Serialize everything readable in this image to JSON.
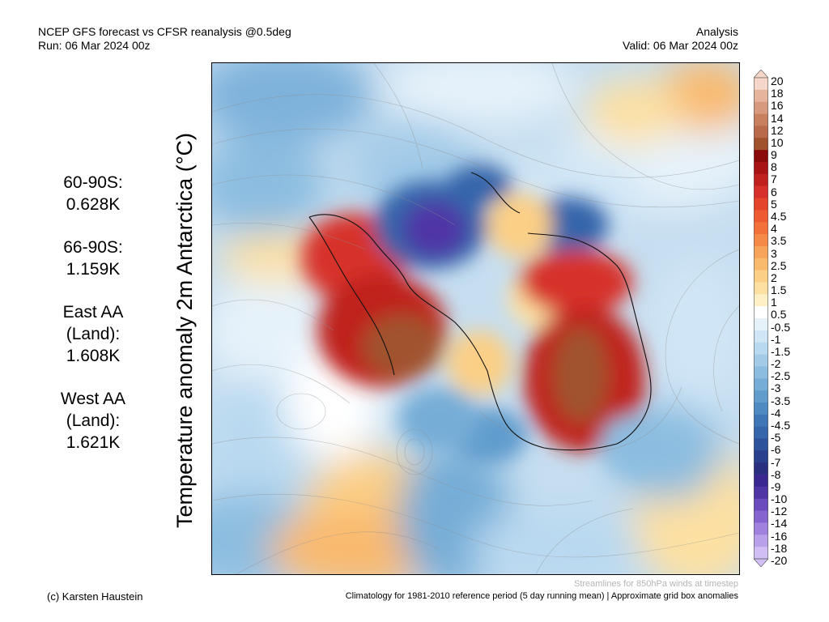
{
  "header": {
    "title": "NCEP GFS forecast vs CFSR reanalysis @0.5deg",
    "run": "Run: 06 Mar 2024 00z",
    "mode": "Analysis",
    "valid": "Valid: 06 Mar 2024 00z"
  },
  "map_title": "Temperature anomaly 2m Antarctica (°C)",
  "stats": [
    {
      "label": "60-90S:",
      "value": "0.628K"
    },
    {
      "label": "66-90S:",
      "value": "1.159K"
    },
    {
      "label": "East AA (Land):",
      "value": "1.608K"
    },
    {
      "label": "West AA (Land):",
      "value": "1.621K"
    }
  ],
  "colorbar": {
    "labels": [
      "20",
      "18",
      "16",
      "14",
      "12",
      "10",
      "9",
      "8",
      "7",
      "6",
      "5",
      "4.5",
      "4",
      "3.5",
      "3",
      "2.5",
      "2",
      "1.5",
      "1",
      "0.5",
      "-0.5",
      "-1",
      "-1.5",
      "-2",
      "-2.5",
      "-3",
      "-3.5",
      "-4",
      "-4.5",
      "-5",
      "-6",
      "-7",
      "-8",
      "-9",
      "-10",
      "-12",
      "-14",
      "-16",
      "-18",
      "-20"
    ],
    "colors": [
      "#f6d6c8",
      "#e6b49c",
      "#d89a7e",
      "#c9805f",
      "#b96a4a",
      "#a0522d",
      "#8b0a0a",
      "#a81414",
      "#c0201e",
      "#d7302a",
      "#e5442c",
      "#ee5a32",
      "#f2703a",
      "#f58a48",
      "#f7a35a",
      "#f9ba6e",
      "#fbcf86",
      "#fde0a2",
      "#fff0c6",
      "#ffffff",
      "#e6f2fa",
      "#d0e6f6",
      "#b9d9f0",
      "#a3cbe8",
      "#8cbde0",
      "#76add7",
      "#619ccd",
      "#4f8ac2",
      "#3f77b6",
      "#3565aa",
      "#2d529c",
      "#28408d",
      "#2a2f80",
      "#3a2890",
      "#4f34a6",
      "#6a4cbe",
      "#8664d0",
      "#a082de",
      "#b9a0ea",
      "#d0bef4"
    ]
  },
  "footer": {
    "credit": "(c) Karsten Haustein",
    "note": "Climatology for 1981-2010 reference period (5 day running mean) | Approximate grid box anomalies",
    "streamlines": "Streamlines for 850hPa winds at timestep"
  }
}
